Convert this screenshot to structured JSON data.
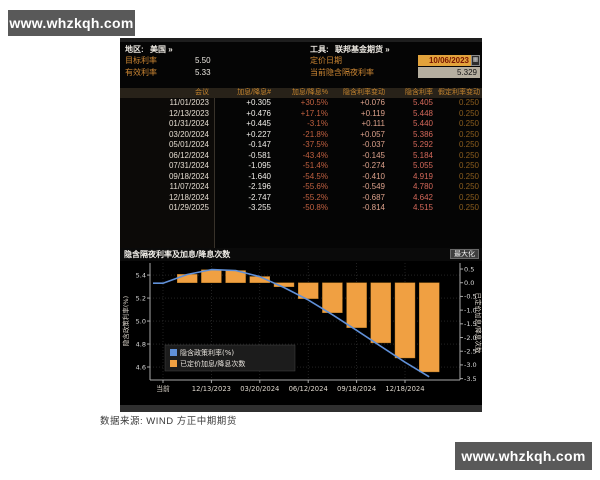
{
  "watermarks": {
    "top_left": "www.whzkqh.com",
    "bottom_right": "www.whzkqh.com"
  },
  "terminal": {
    "header": {
      "region_label": "地区:",
      "region_value": "美国 »",
      "tool_label": "工具:",
      "tool_value": "联邦基金期货 »",
      "target_rate_label": "目标利率",
      "target_rate_value": "5.50",
      "effective_rate_label": "有效利率",
      "effective_rate_value": "5.33",
      "pricing_date_label": "定价日期",
      "pricing_date_value": "10/06/2023",
      "implied_overnight_label": "当前隐含隔夜利率",
      "implied_overnight_value": "5.329"
    },
    "table": {
      "columns": [
        "会议",
        "加息/降息#",
        "加息/降息%",
        "隐含利率变动",
        "隐含利率",
        "假定利率变动"
      ],
      "rows": [
        [
          "11/01/2023",
          "+0.305",
          "+30.5%",
          "+0.076",
          "5.405",
          "0.250"
        ],
        [
          "12/13/2023",
          "+0.476",
          "+17.1%",
          "+0.119",
          "5.448",
          "0.250"
        ],
        [
          "01/31/2024",
          "+0.445",
          "-3.1%",
          "+0.111",
          "5.440",
          "0.250"
        ],
        [
          "03/20/2024",
          "+0.227",
          "-21.8%",
          "+0.057",
          "5.386",
          "0.250"
        ],
        [
          "05/01/2024",
          "-0.147",
          "-37.5%",
          "-0.037",
          "5.292",
          "0.250"
        ],
        [
          "06/12/2024",
          "-0.581",
          "-43.4%",
          "-0.145",
          "5.184",
          "0.250"
        ],
        [
          "07/31/2024",
          "-1.095",
          "-51.4%",
          "-0.274",
          "5.055",
          "0.250"
        ],
        [
          "09/18/2024",
          "-1.640",
          "-54.5%",
          "-0.410",
          "4.919",
          "0.250"
        ],
        [
          "11/07/2024",
          "-2.196",
          "-55.6%",
          "-0.549",
          "4.780",
          "0.250"
        ],
        [
          "12/18/2024",
          "-2.747",
          "-55.2%",
          "-0.687",
          "4.642",
          "0.250"
        ],
        [
          "01/29/2025",
          "-3.255",
          "-50.8%",
          "-0.814",
          "4.515",
          "0.250"
        ]
      ]
    },
    "chart_titlebar": {
      "title": "隐含隔夜利率及加息/降息次数",
      "maximize_label": "最大化"
    }
  },
  "source_note": "数据来源: WIND 方正中期期货",
  "colors": {
    "accent_amber": "#cc8633",
    "bar_orange": "#f0a042",
    "line_blue": "#6090d8",
    "date_box_bg": "#e2a33c",
    "value_box_bg": "#b5ae9f",
    "watermark_bg": "#595959"
  },
  "chart_data": {
    "type": "line+bar",
    "title": "隐含隔夜利率及加息/降息次数",
    "categories": [
      "当前",
      "11/01/2023",
      "12/13/2023",
      "01/31/2024",
      "03/20/2024",
      "05/01/2024",
      "06/12/2024",
      "07/31/2024",
      "09/18/2024",
      "11/07/2024",
      "12/18/2024",
      "01/29/2025"
    ],
    "series": [
      {
        "name": "隐含政策利率(%)",
        "type": "line",
        "axis": "left",
        "color": "#6090d8",
        "values": [
          5.329,
          5.405,
          5.448,
          5.44,
          5.386,
          5.292,
          5.184,
          5.055,
          4.919,
          4.78,
          4.642,
          4.515
        ]
      },
      {
        "name": "已定价加息/降息次数",
        "type": "bar",
        "axis": "right",
        "color": "#f0a042",
        "values": [
          null,
          0.305,
          0.476,
          0.445,
          0.227,
          -0.147,
          -0.581,
          -1.095,
          -1.64,
          -2.196,
          -2.747,
          -3.255
        ]
      }
    ],
    "left_axis": {
      "label": "隐含政策利率(%)",
      "ticks": [
        5.4,
        5.2,
        5.0,
        4.8,
        4.6
      ],
      "range": [
        4.487,
        5.505
      ]
    },
    "right_axis": {
      "label": "已定价加息/降息次数",
      "ticks": [
        0.5,
        0.0,
        -0.5,
        -1.0,
        -1.5,
        -2.0,
        -2.5,
        -3.0,
        -3.5
      ],
      "range": [
        -3.55,
        0.72
      ]
    },
    "x_tick_indices": [
      0,
      2,
      4,
      6,
      8,
      10
    ],
    "legend_position": "bottom-left",
    "grid": true
  }
}
